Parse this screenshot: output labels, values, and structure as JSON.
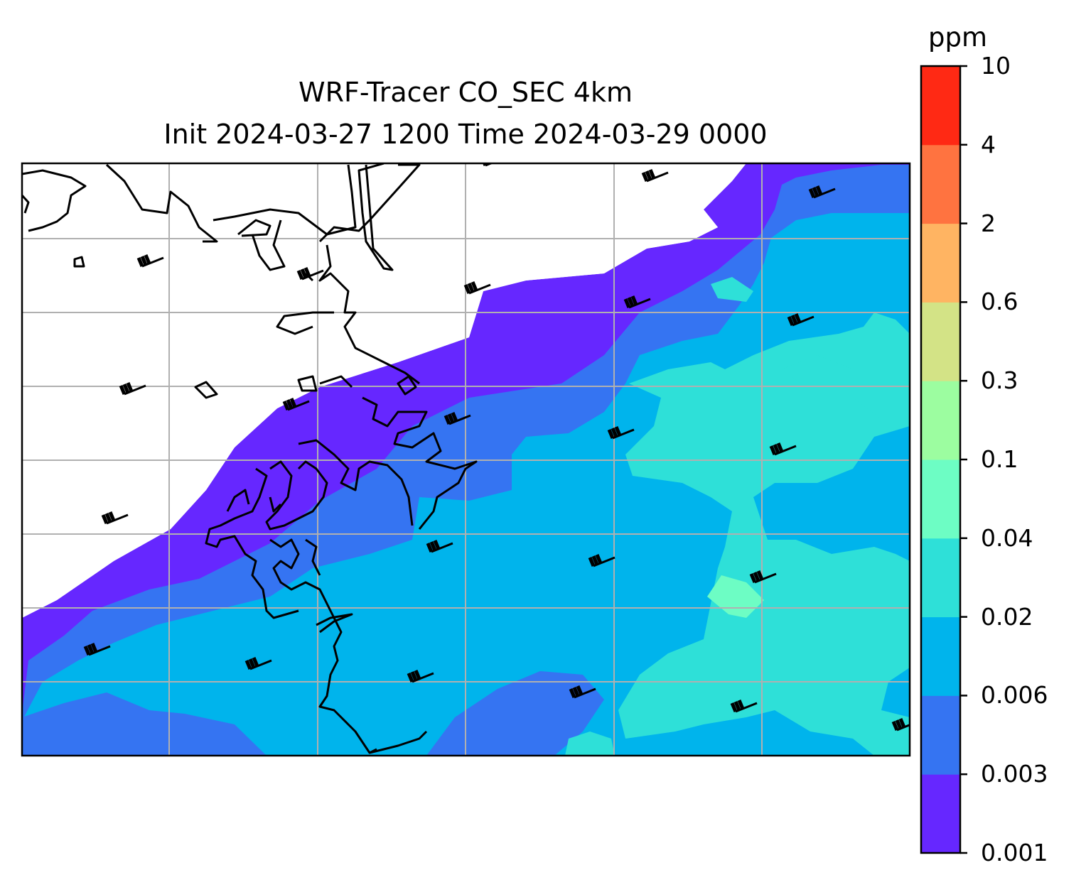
{
  "title_line1": "WRF-Tracer CO_SEC 4km",
  "title_line2": "Init 2024-03-27 1200 Time 2024-03-29 0000",
  "colorbar": {
    "unit": "ppm",
    "levels": [
      {
        "label": "0.001",
        "color": "#6627ff"
      },
      {
        "label": "0.003",
        "color": "#3574f2"
      },
      {
        "label": "0.006",
        "color": "#00b4ec"
      },
      {
        "label": "0.02",
        "color": "#2ee0d8"
      },
      {
        "label": "0.04",
        "color": "#6dfdc4"
      },
      {
        "label": "0.1",
        "color": "#9cfda0"
      },
      {
        "label": "0.3",
        "color": "#d3e386"
      },
      {
        "label": "0.6",
        "color": "#ffb462"
      },
      {
        "label": "2",
        "color": "#ff7340"
      },
      {
        "label": "4",
        "color": "#ff2914"
      },
      {
        "label": "10",
        "color": null
      }
    ]
  },
  "map": {
    "gridlines": true,
    "coastline_color": "#000000",
    "wind_barbs": "present"
  }
}
